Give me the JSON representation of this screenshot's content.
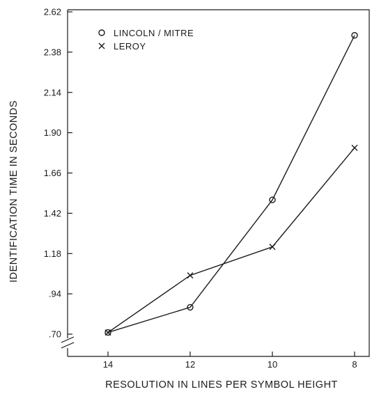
{
  "chart_data": {
    "type": "line",
    "title": "",
    "xlabel": "RESOLUTION IN LINES PER SYMBOL HEIGHT",
    "ylabel": "IDENTIFICATION TIME IN SECONDS",
    "x_categories": [
      "14",
      "12",
      "10",
      "8"
    ],
    "y_ticks": [
      ".70",
      ".94",
      "1.18",
      "1.42",
      "1.66",
      "1.90",
      "2.14",
      "2.38",
      "2.62"
    ],
    "ylim": [
      0.7,
      2.62
    ],
    "y_axis_break": true,
    "grid": false,
    "legend_position": "top-left",
    "series": [
      {
        "name": "LINCOLN / MITRE",
        "marker": "circle",
        "values": [
          0.71,
          0.86,
          1.5,
          2.48
        ]
      },
      {
        "name": "LEROY",
        "marker": "x",
        "values": [
          0.71,
          1.05,
          1.22,
          1.81
        ]
      }
    ]
  }
}
